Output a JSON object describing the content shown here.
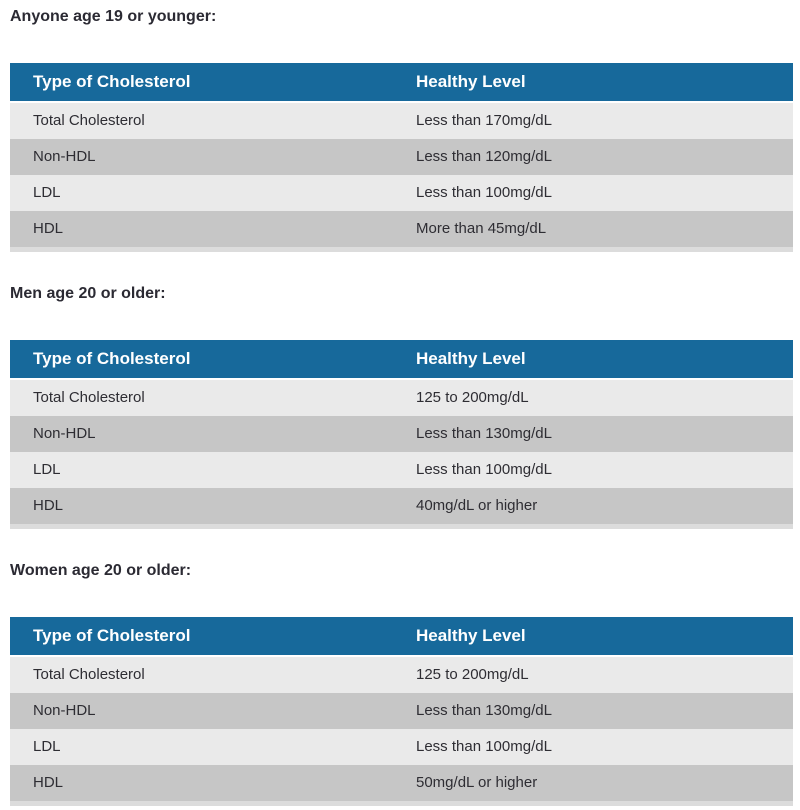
{
  "colors": {
    "header_bg": "#17699b",
    "header_text": "#ffffff",
    "row_light": "#eaeaea",
    "row_dark": "#c6c6c6",
    "table_bottom_strip": "#dcdcdc",
    "title_text": "#2b2a33",
    "cell_text": "#2e2d33"
  },
  "sections": [
    {
      "title": "Anyone age 19 or younger:",
      "table": {
        "headers": [
          "Type of Cholesterol",
          "Healthy Level"
        ],
        "rows": [
          [
            "Total Cholesterol",
            "Less than 170mg/dL"
          ],
          [
            "Non-HDL",
            "Less than 120mg/dL"
          ],
          [
            "LDL",
            "Less than 100mg/dL"
          ],
          [
            "HDL",
            "More than 45mg/dL"
          ]
        ]
      }
    },
    {
      "title": "Men age 20 or older:",
      "table": {
        "headers": [
          "Type of Cholesterol",
          "Healthy Level"
        ],
        "rows": [
          [
            "Total Cholesterol",
            "125 to 200mg/dL"
          ],
          [
            "Non-HDL",
            "Less than 130mg/dL"
          ],
          [
            "LDL",
            "Less than 100mg/dL"
          ],
          [
            "HDL",
            "40mg/dL or higher"
          ]
        ]
      }
    },
    {
      "title": "Women age 20 or older:",
      "table": {
        "headers": [
          "Type of Cholesterol",
          "Healthy Level"
        ],
        "rows": [
          [
            "Total Cholesterol",
            "125 to 200mg/dL"
          ],
          [
            "Non-HDL",
            "Less than 130mg/dL"
          ],
          [
            "LDL",
            "Less than 100mg/dL"
          ],
          [
            "HDL",
            "50mg/dL or higher"
          ]
        ]
      }
    }
  ]
}
